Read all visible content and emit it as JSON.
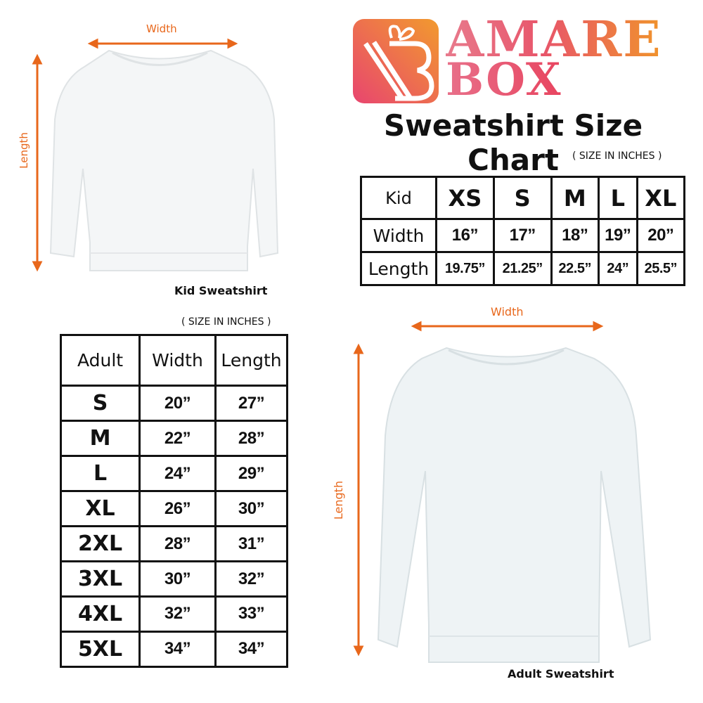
{
  "brand": {
    "line1": "AMARE",
    "line2": "BOX"
  },
  "title": "Sweatshirt Size Chart",
  "unit_note": "( SIZE IN INCHES )",
  "colors": {
    "arrow": "#e8671b",
    "brand_pink": "#e8507a",
    "brand_orange": "#f0932b"
  },
  "kid": {
    "caption": "Kid Sweatshirt",
    "width_label": "Width",
    "length_label": "Length",
    "table": {
      "header": [
        "Kid",
        "XS",
        "S",
        "M",
        "L",
        "XL"
      ],
      "rows": [
        [
          "Width",
          "16”",
          "17”",
          "18”",
          "19”",
          "20”"
        ],
        [
          "Length",
          "19.75”",
          "21.25”",
          "22.5”",
          "24”",
          "25.5”"
        ]
      ]
    }
  },
  "adult": {
    "caption": "Adult Sweatshirt",
    "width_label": "Width",
    "length_label": "Length",
    "table": {
      "header": [
        "Adult",
        "Width",
        "Length"
      ],
      "rows": [
        [
          "S",
          "20”",
          "27”"
        ],
        [
          "M",
          "22”",
          "28”"
        ],
        [
          "L",
          "24”",
          "29”"
        ],
        [
          "XL",
          "26”",
          "30”"
        ],
        [
          "2XL",
          "28”",
          "31”"
        ],
        [
          "3XL",
          "30”",
          "32”"
        ],
        [
          "4XL",
          "32”",
          "33”"
        ],
        [
          "5XL",
          "34”",
          "34”"
        ]
      ]
    }
  }
}
